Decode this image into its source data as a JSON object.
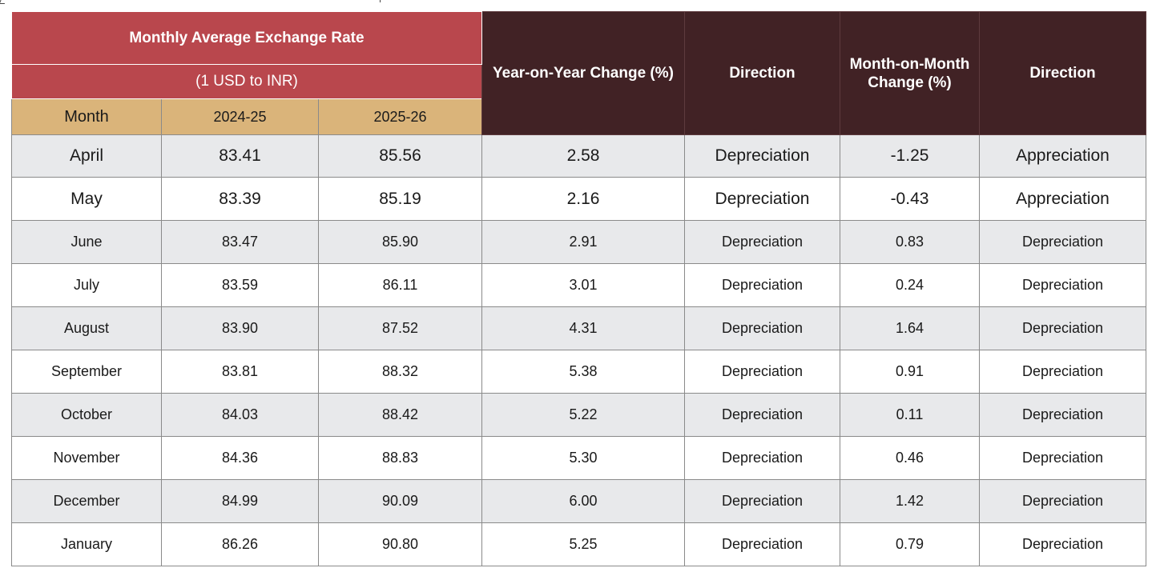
{
  "table": {
    "header": {
      "group_title": "Monthly Average Exchange Rate",
      "group_subtitle": "(1 USD to INR)",
      "month_label": "Month",
      "year1_label": "2024-25",
      "year2_label": "2025-26",
      "yoy_label": "Year-on-Year Change (%)",
      "direction1_label": "Direction",
      "mom_label": "Month-on-Month Change (%)",
      "direction2_label": "Direction"
    },
    "rows": [
      {
        "month": "April",
        "y2024_25": "83.41",
        "y2025_26": "85.56",
        "yoy": "2.58",
        "yoy_direction": "Depreciation",
        "mom": "-1.25",
        "mom_direction": "Appreciation"
      },
      {
        "month": "May",
        "y2024_25": "83.39",
        "y2025_26": "85.19",
        "yoy": "2.16",
        "yoy_direction": "Depreciation",
        "mom": "-0.43",
        "mom_direction": "Appreciation"
      },
      {
        "month": "June",
        "y2024_25": "83.47",
        "y2025_26": "85.90",
        "yoy": "2.91",
        "yoy_direction": "Depreciation",
        "mom": "0.83",
        "mom_direction": "Depreciation"
      },
      {
        "month": "July",
        "y2024_25": "83.59",
        "y2025_26": "86.11",
        "yoy": "3.01",
        "yoy_direction": "Depreciation",
        "mom": "0.24",
        "mom_direction": "Depreciation"
      },
      {
        "month": "August",
        "y2024_25": "83.90",
        "y2025_26": "87.52",
        "yoy": "4.31",
        "yoy_direction": "Depreciation",
        "mom": "1.64",
        "mom_direction": "Depreciation"
      },
      {
        "month": "September",
        "y2024_25": "83.81",
        "y2025_26": "88.32",
        "yoy": "5.38",
        "yoy_direction": "Depreciation",
        "mom": "0.91",
        "mom_direction": "Depreciation"
      },
      {
        "month": "October",
        "y2024_25": "84.03",
        "y2025_26": "88.42",
        "yoy": "5.22",
        "yoy_direction": "Depreciation",
        "mom": "0.11",
        "mom_direction": "Depreciation"
      },
      {
        "month": "November",
        "y2024_25": "84.36",
        "y2025_26": "88.83",
        "yoy": "5.30",
        "yoy_direction": "Depreciation",
        "mom": "0.46",
        "mom_direction": "Depreciation"
      },
      {
        "month": "December",
        "y2024_25": "84.99",
        "y2025_26": "90.09",
        "yoy": "6.00",
        "yoy_direction": "Depreciation",
        "mom": "1.42",
        "mom_direction": "Depreciation"
      },
      {
        "month": "January",
        "y2024_25": "86.26",
        "y2025_26": "90.80",
        "yoy": "5.25",
        "yoy_direction": "Depreciation",
        "mom": "0.79",
        "mom_direction": "Depreciation"
      }
    ]
  }
}
